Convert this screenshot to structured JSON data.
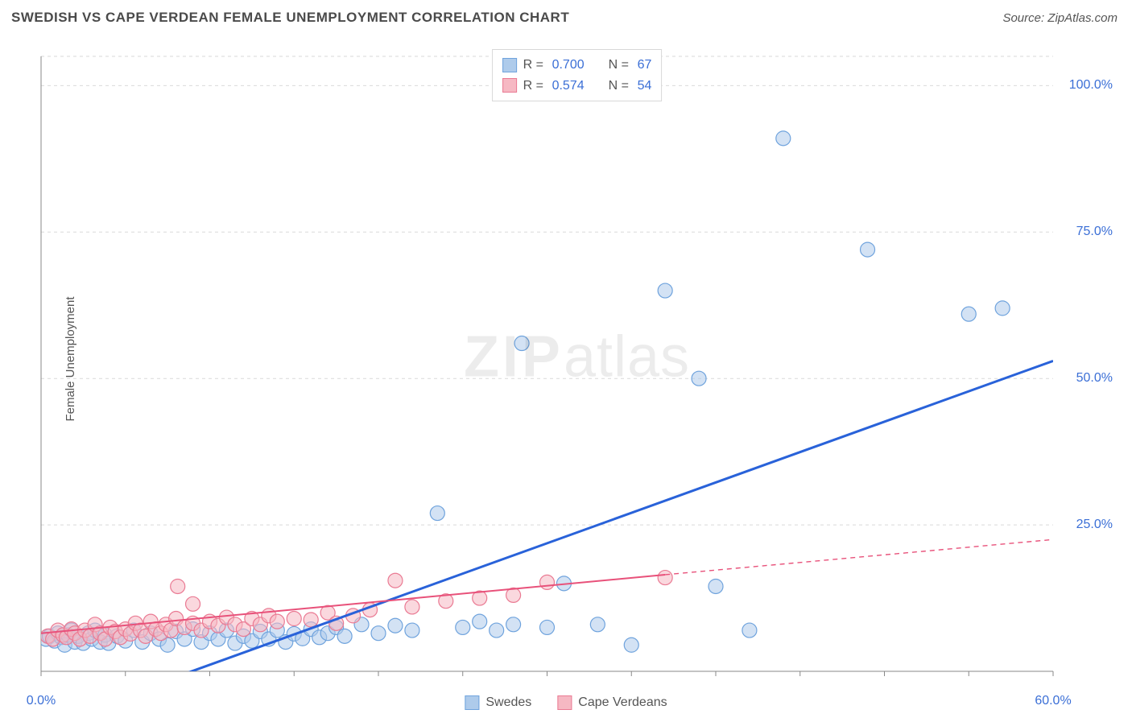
{
  "title": "SWEDISH VS CAPE VERDEAN FEMALE UNEMPLOYMENT CORRELATION CHART",
  "source": "Source: ZipAtlas.com",
  "yaxis_label": "Female Unemployment",
  "watermark_bold": "ZIP",
  "watermark_rest": "atlas",
  "chart": {
    "type": "scatter",
    "xlim": [
      0,
      60
    ],
    "ylim": [
      0,
      105
    ],
    "x_ticks": [
      0,
      60
    ],
    "x_tick_labels": [
      "0.0%",
      "60.0%"
    ],
    "y_ticks": [
      25,
      50,
      75,
      100
    ],
    "y_tick_labels": [
      "25.0%",
      "50.0%",
      "75.0%",
      "100.0%"
    ],
    "gridline_color": "#d9d9d9",
    "gridline_dash": "4 4",
    "axis_color": "#888888",
    "tick_minor_step_x": 5,
    "background_color": "#ffffff",
    "series": [
      {
        "name": "Swedes",
        "fill": "#aecbeb",
        "stroke": "#6fa3dd",
        "fill_opacity": 0.55,
        "marker_radius": 9,
        "R": "0.700",
        "N": "67",
        "value_color": "#3b6fd6",
        "points": [
          [
            0.3,
            5.5
          ],
          [
            0.5,
            6.0
          ],
          [
            0.8,
            5.2
          ],
          [
            1.0,
            6.5
          ],
          [
            1.2,
            5.8
          ],
          [
            1.4,
            4.5
          ],
          [
            1.6,
            6.2
          ],
          [
            1.8,
            7.0
          ],
          [
            2.0,
            5.0
          ],
          [
            2.2,
            6.0
          ],
          [
            2.5,
            4.8
          ],
          [
            2.8,
            6.5
          ],
          [
            3.0,
            5.5
          ],
          [
            3.2,
            7.0
          ],
          [
            3.5,
            5.0
          ],
          [
            3.8,
            6.2
          ],
          [
            4.0,
            4.8
          ],
          [
            4.5,
            6.0
          ],
          [
            5.0,
            5.2
          ],
          [
            5.5,
            7.0
          ],
          [
            6.0,
            5.0
          ],
          [
            6.5,
            6.5
          ],
          [
            7.0,
            5.5
          ],
          [
            7.5,
            4.5
          ],
          [
            8.0,
            6.8
          ],
          [
            8.5,
            5.5
          ],
          [
            9.0,
            7.2
          ],
          [
            9.5,
            5.0
          ],
          [
            10.0,
            6.5
          ],
          [
            10.5,
            5.5
          ],
          [
            11.0,
            7.0
          ],
          [
            11.5,
            4.8
          ],
          [
            12.0,
            6.0
          ],
          [
            12.5,
            5.2
          ],
          [
            13.0,
            6.8
          ],
          [
            13.5,
            5.5
          ],
          [
            14.0,
            7.0
          ],
          [
            14.5,
            5.0
          ],
          [
            15.0,
            6.4
          ],
          [
            15.5,
            5.6
          ],
          [
            16.0,
            7.2
          ],
          [
            16.5,
            5.8
          ],
          [
            17.0,
            6.5
          ],
          [
            17.5,
            7.5
          ],
          [
            18.0,
            6.0
          ],
          [
            19.0,
            8.0
          ],
          [
            20.0,
            6.5
          ],
          [
            21.0,
            7.8
          ],
          [
            22.0,
            7.0
          ],
          [
            23.5,
            27.0
          ],
          [
            25.0,
            7.5
          ],
          [
            26.0,
            8.5
          ],
          [
            27.0,
            7.0
          ],
          [
            28.0,
            8.0
          ],
          [
            28.5,
            56.0
          ],
          [
            30.0,
            7.5
          ],
          [
            31.0,
            15.0
          ],
          [
            33.0,
            8.0
          ],
          [
            35.0,
            4.5
          ],
          [
            37.0,
            65.0
          ],
          [
            39.0,
            50.0
          ],
          [
            40.0,
            14.5
          ],
          [
            42.0,
            7.0
          ],
          [
            44.0,
            91.0
          ],
          [
            49.0,
            72.0
          ],
          [
            55.0,
            61.0
          ],
          [
            57.0,
            62.0
          ]
        ],
        "trend": {
          "x1": 7,
          "y1": -2,
          "x2": 60,
          "y2": 53,
          "color": "#2962d9",
          "width": 3,
          "dash": "none"
        }
      },
      {
        "name": "Cape Verdeans",
        "fill": "#f6b8c3",
        "stroke": "#ea7a93",
        "fill_opacity": 0.55,
        "marker_radius": 9,
        "R": "0.574",
        "N": "54",
        "value_color": "#3b6fd6",
        "points": [
          [
            0.4,
            6.0
          ],
          [
            0.7,
            5.5
          ],
          [
            1.0,
            7.0
          ],
          [
            1.3,
            6.2
          ],
          [
            1.5,
            5.8
          ],
          [
            1.8,
            7.2
          ],
          [
            2.0,
            6.5
          ],
          [
            2.3,
            5.5
          ],
          [
            2.6,
            7.0
          ],
          [
            2.9,
            6.0
          ],
          [
            3.2,
            8.0
          ],
          [
            3.5,
            6.5
          ],
          [
            3.8,
            5.5
          ],
          [
            4.1,
            7.5
          ],
          [
            4.4,
            6.8
          ],
          [
            4.7,
            5.8
          ],
          [
            5.0,
            7.2
          ],
          [
            5.3,
            6.4
          ],
          [
            5.6,
            8.2
          ],
          [
            5.9,
            7.0
          ],
          [
            6.2,
            6.0
          ],
          [
            6.5,
            8.5
          ],
          [
            6.8,
            7.2
          ],
          [
            7.1,
            6.5
          ],
          [
            7.4,
            8.0
          ],
          [
            7.7,
            7.0
          ],
          [
            8.0,
            9.0
          ],
          [
            8.1,
            14.5
          ],
          [
            8.5,
            7.5
          ],
          [
            9.0,
            8.2
          ],
          [
            9.0,
            11.5
          ],
          [
            9.5,
            7.0
          ],
          [
            10.0,
            8.5
          ],
          [
            10.5,
            7.8
          ],
          [
            11.0,
            9.2
          ],
          [
            11.5,
            8.0
          ],
          [
            12.0,
            7.2
          ],
          [
            12.5,
            9.0
          ],
          [
            13.0,
            8.0
          ],
          [
            13.5,
            9.5
          ],
          [
            14.0,
            8.5
          ],
          [
            15.0,
            9.0
          ],
          [
            16.0,
            8.8
          ],
          [
            17.0,
            10.0
          ],
          [
            17.5,
            8.2
          ],
          [
            18.5,
            9.5
          ],
          [
            19.5,
            10.5
          ],
          [
            21.0,
            15.5
          ],
          [
            22.0,
            11.0
          ],
          [
            24.0,
            12.0
          ],
          [
            26.0,
            12.5
          ],
          [
            28.0,
            13.0
          ],
          [
            30.0,
            15.2
          ],
          [
            37.0,
            16.0
          ]
        ],
        "trend": {
          "x1": 0,
          "y1": 6.5,
          "x2": 37,
          "y2": 16.5,
          "color": "#e8517a",
          "width": 2,
          "dash": "none",
          "extrapolate": {
            "x2": 60,
            "y2": 22.5,
            "dash": "6 5"
          }
        }
      }
    ]
  },
  "legend_top_labels": {
    "R": "R =",
    "N": "N ="
  },
  "legend_bottom": [
    {
      "label": "Swedes",
      "fill": "#aecbeb",
      "stroke": "#6fa3dd"
    },
    {
      "label": "Cape Verdeans",
      "fill": "#f6b8c3",
      "stroke": "#ea7a93"
    }
  ]
}
